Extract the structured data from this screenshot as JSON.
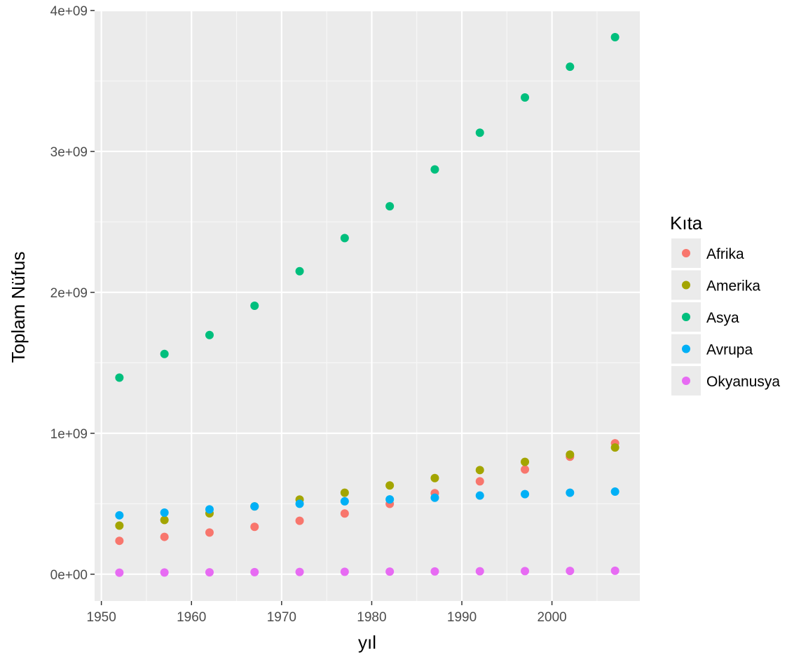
{
  "chart_data": {
    "type": "scatter",
    "title": "",
    "xlabel": "yıl",
    "ylabel": "Toplam Nüfus",
    "xlim": [
      1949.25,
      2009.75
    ],
    "ylim": [
      -190000000,
      4000000000
    ],
    "x_ticks": [
      1950,
      1960,
      1970,
      1980,
      1990,
      2000
    ],
    "x_tick_labels": [
      "1950",
      "1960",
      "1970",
      "1980",
      "1990",
      "2000"
    ],
    "y_ticks": [
      0,
      1000000000,
      2000000000,
      3000000000,
      4000000000
    ],
    "y_tick_labels": [
      "0e+00",
      "1e+09",
      "2e+09",
      "3e+09",
      "4e+09"
    ],
    "grid": true,
    "legend": {
      "title": "Kıta",
      "position": "right"
    },
    "x": [
      1952,
      1957,
      1962,
      1967,
      1972,
      1977,
      1982,
      1987,
      1992,
      1997,
      2002,
      2007
    ],
    "series": [
      {
        "name": "Afrika",
        "color": "#F8766D",
        "values": [
          237000000,
          265000000,
          296000000,
          336000000,
          379000000,
          431000000,
          499000000,
          575000000,
          659000000,
          743000000,
          834000000,
          929000000
        ]
      },
      {
        "name": "Amerika",
        "color": "#A3A500",
        "values": [
          345000000,
          385000000,
          432000000,
          481000000,
          530000000,
          578000000,
          630000000,
          682000000,
          739000000,
          797000000,
          849000000,
          899000000
        ]
      },
      {
        "name": "Asya",
        "color": "#00BF7D",
        "values": [
          1395000000,
          1563000000,
          1697000000,
          1905000000,
          2150000000,
          2385000000,
          2611000000,
          2872000000,
          3133000000,
          3383000000,
          3601000000,
          3811000000
        ]
      },
      {
        "name": "Avrupa",
        "color": "#00B0F6",
        "values": [
          418000000,
          437000000,
          460000000,
          481000000,
          500000000,
          517000000,
          531000000,
          543000000,
          558000000,
          568000000,
          578000000,
          586000000
        ]
      },
      {
        "name": "Okyanusya",
        "color": "#E76BF3",
        "values": [
          10700000,
          11900000,
          13300000,
          14600000,
          16100000,
          17200000,
          18400000,
          19500000,
          20900000,
          22200000,
          23500000,
          24500000
        ]
      }
    ]
  }
}
